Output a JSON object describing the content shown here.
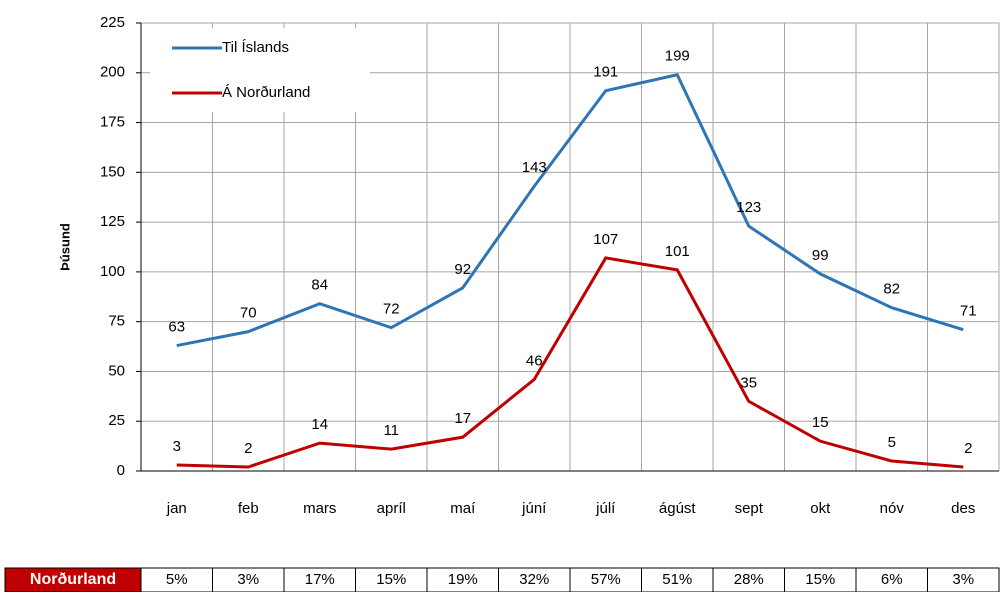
{
  "chart_data": {
    "type": "line",
    "y_label": "Þúsund",
    "categories": [
      "jan",
      "feb",
      "mars",
      "apríl",
      "maí",
      "júní",
      "júlí",
      "ágúst",
      "sept",
      "okt",
      "nóv",
      "des"
    ],
    "series": [
      {
        "name": "Til Íslands",
        "color": "#2e75b6",
        "values": [
          63,
          70,
          84,
          72,
          92,
          143,
          191,
          199,
          123,
          99,
          82,
          71
        ]
      },
      {
        "name": "Á Norðurland",
        "color": "#c00000",
        "values": [
          3,
          2,
          14,
          11,
          17,
          46,
          107,
          101,
          35,
          15,
          5,
          2
        ]
      }
    ],
    "ylim": [
      0,
      225
    ],
    "yticks": [
      0,
      25,
      50,
      75,
      100,
      125,
      150,
      175,
      200,
      225
    ],
    "grid": true,
    "legend": "top-left"
  },
  "table": {
    "row_label": "Norðurland",
    "cells": [
      "5%",
      "3%",
      "17%",
      "15%",
      "19%",
      "32%",
      "57%",
      "51%",
      "28%",
      "15%",
      "6%",
      "3%"
    ]
  }
}
